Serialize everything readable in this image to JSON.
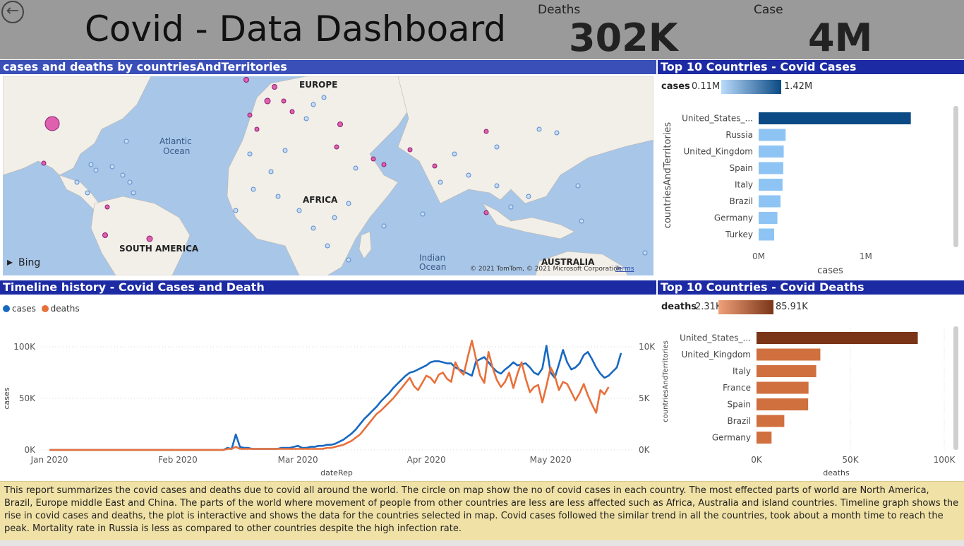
{
  "header": {
    "title": "Covid - Data Dashboard",
    "kpis": [
      {
        "label": "Deaths",
        "value": "302K"
      },
      {
        "label": "Case",
        "value": "4M"
      }
    ]
  },
  "map_panel": {
    "title": "cases and deaths by countriesAndTerritories",
    "labels": {
      "europe": "EUROPE",
      "atlantic_1": "Atlantic",
      "atlantic_2": "Ocean",
      "africa": "AFRICA",
      "south_america": "SOUTH AMERICA",
      "indian_1": "Indian",
      "indian_2": "Ocean",
      "australia": "AUSTRALIA"
    },
    "bing_label": "Bing",
    "copyright": "© 2021 TomTom, © 2021 Microsoft Corporation",
    "terms": "Terms"
  },
  "top_cases": {
    "title": "Top 10 Countries - Covid Cases",
    "legend_label": "cases",
    "legend_min": "0.11M",
    "legend_max": "1.42M",
    "y_axis_title": "countriesAndTerritories",
    "x_axis_title": "cases",
    "x_ticks": [
      "0M",
      "1M"
    ],
    "colors": {
      "max": "#0b4a84",
      "other": "#8ec4f4"
    },
    "chart_data": {
      "type": "bar",
      "categories": [
        "United_States_...",
        "Russia",
        "United_Kingdom",
        "Spain",
        "Italy",
        "Brazil",
        "Germany",
        "Turkey"
      ],
      "values": [
        1420000,
        252000,
        234000,
        230000,
        223000,
        204000,
        175000,
        145000
      ],
      "xlim": [
        0,
        1600000
      ]
    }
  },
  "timeline": {
    "title": "Timeline history - Covid Cases and Death",
    "legend": [
      {
        "name": "cases",
        "color": "#1868c0"
      },
      {
        "name": "deaths",
        "color": "#e8703a"
      }
    ],
    "y_left_label": "cases",
    "y_left_ticks": [
      "0K",
      "50K",
      "100K"
    ],
    "y_right_ticks": [
      "0K",
      "5K",
      "10K"
    ],
    "x_label": "dateRep",
    "x_ticks": [
      "Jan 2020",
      "Feb 2020",
      "Mar 2020",
      "Apr 2020",
      "May 2020"
    ],
    "chart_data": {
      "type": "line",
      "x_start": "2020-01-01",
      "x_end": "2020-05-19",
      "ylim_left": [
        0,
        100000
      ],
      "ylim_right": [
        0,
        10000
      ],
      "series": [
        {
          "name": "cases",
          "axis": "left",
          "color": "#1868c0",
          "values": [
            0,
            0,
            0,
            0,
            0,
            0,
            0,
            0,
            0,
            0,
            0,
            0,
            0,
            0,
            0,
            0,
            0,
            0,
            0,
            0,
            0,
            0,
            0,
            0,
            0,
            0,
            0,
            0,
            0,
            0,
            0,
            0,
            0,
            0,
            0,
            0,
            0,
            0,
            0,
            0,
            0,
            0,
            0,
            2000,
            1000,
            15000,
            3000,
            2000,
            2000,
            1000,
            1000,
            1000,
            1000,
            1000,
            1000,
            1000,
            2000,
            2000,
            2000,
            3000,
            4000,
            2000,
            2000,
            3000,
            3000,
            4000,
            4000,
            5000,
            5000,
            6000,
            8000,
            10000,
            13000,
            16000,
            20000,
            25000,
            30000,
            34000,
            38000,
            42000,
            47000,
            51000,
            55000,
            60000,
            64000,
            68000,
            72000,
            75000,
            76000,
            78000,
            80000,
            82000,
            85000,
            86000,
            86000,
            85000,
            84000,
            84000,
            80000,
            78000,
            76000,
            74000,
            72000,
            86000,
            88000,
            90000,
            85000,
            80000,
            76000,
            74000,
            78000,
            81000,
            85000,
            82000,
            83000,
            84000,
            80000,
            75000,
            73000,
            79000,
            101000,
            75000,
            70000,
            83000,
            97000,
            85000,
            78000,
            80000,
            84000,
            92000,
            95000,
            88000,
            80000,
            74000,
            70000,
            72000,
            76000,
            80000,
            94000
          ]
        },
        {
          "name": "deaths",
          "axis": "right",
          "color": "#e8703a",
          "values": [
            0,
            0,
            0,
            0,
            0,
            0,
            0,
            0,
            0,
            0,
            0,
            0,
            0,
            0,
            0,
            0,
            0,
            0,
            0,
            0,
            0,
            0,
            0,
            0,
            0,
            0,
            0,
            0,
            0,
            0,
            0,
            0,
            0,
            0,
            0,
            0,
            0,
            0,
            0,
            0,
            0,
            0,
            0,
            100,
            100,
            300,
            100,
            100,
            100,
            100,
            100,
            100,
            100,
            100,
            100,
            100,
            100,
            100,
            100,
            100,
            100,
            100,
            100,
            100,
            100,
            100,
            100,
            200,
            200,
            300,
            400,
            500,
            700,
            900,
            1200,
            1500,
            2000,
            2500,
            3000,
            3500,
            3800,
            4200,
            4600,
            5000,
            5500,
            6000,
            6500,
            7000,
            6200,
            5800,
            6500,
            7200,
            7000,
            6500,
            7300,
            7500,
            6900,
            6600,
            8500,
            7700,
            7300,
            9000,
            10600,
            8800,
            7200,
            6500,
            9500,
            8000,
            6800,
            6100,
            6600,
            7500,
            6000,
            7400,
            8500,
            6900,
            5600,
            6100,
            6300,
            4600,
            6200,
            8000,
            7200,
            5800,
            6600,
            6400,
            5600,
            4800,
            5500,
            6400,
            5300,
            4400,
            3600,
            5800,
            5400,
            6100
          ]
        }
      ]
    }
  },
  "top_deaths": {
    "title": "Top 10 Countries - Covid Deaths",
    "legend_label": "deaths",
    "legend_min": "2.31K",
    "legend_max": "85.91K",
    "y_axis_title": "countriesAndTerritories",
    "x_axis_title": "deaths",
    "x_ticks": [
      "0K",
      "50K",
      "100K"
    ],
    "colors": {
      "max": "#7a3517",
      "other": "#d0703e"
    },
    "chart_data": {
      "type": "bar",
      "categories": [
        "United_States_...",
        "United_Kingdom",
        "Italy",
        "France",
        "Spain",
        "Brazil",
        "Germany"
      ],
      "values": [
        85910,
        34000,
        31800,
        27700,
        27500,
        14800,
        8000
      ],
      "xlim": [
        0,
        100000
      ]
    }
  },
  "description": "This report summarizes the covid cases and deaths due to covid all around the world. The circle on map show the no of covid cases in each country. The most effected parts of world are North America, Brazil, Europe middle East and China. The parts of the world where movement of people from other countries are less are less affected such as Africa, Australia and island countries. Timeline graph shows the rise in covid cases and deaths, the plot is interactive and shows the data for the countries selected in map. Covid cases followed the similar trend in all the countries, took about a month time to reach the peak. Mortality rate in Russia  is less as compared to other countries despite the high infection rate."
}
